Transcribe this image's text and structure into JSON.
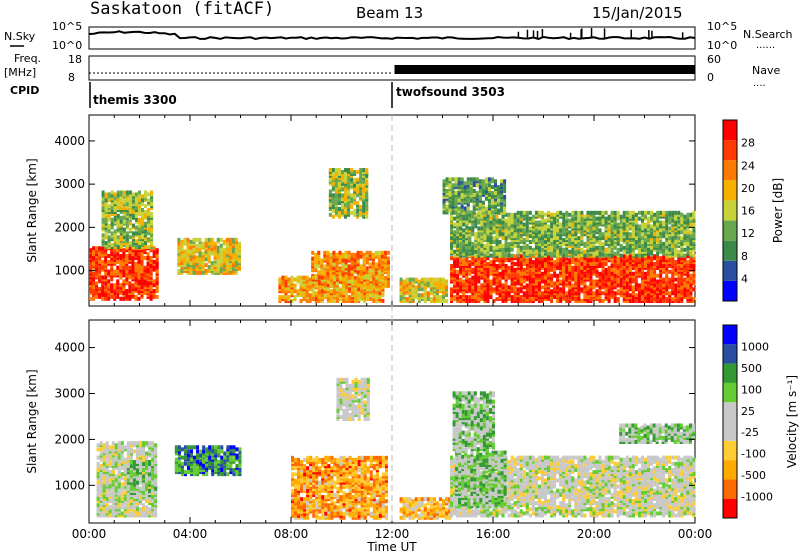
{
  "header": {
    "title": "Saskatoon (fitACF)",
    "beam": "Beam 13",
    "date": "15/Jan/2015"
  },
  "labels": {
    "nsky": "N.Sky",
    "nsearch": "N.Search",
    "freq": "Freq.",
    "mhz": "[MHz]",
    "nave": "Nave",
    "cpid": "CPID",
    "legend_dots": "......",
    "legend_dots_short": "...."
  },
  "ticks": {
    "noise_left": [
      "10^5",
      "10^0"
    ],
    "noise_right": [
      "10^5",
      "10^0"
    ],
    "freq_left": [
      "18",
      "8"
    ],
    "nave_right": [
      "60",
      "0"
    ]
  },
  "cpid_blocks": [
    {
      "name": "themis 3300",
      "start_hr": 0
    },
    {
      "name": "twofsound 3503",
      "start_hr": 12.0
    }
  ],
  "colors": {
    "power": [
      "#0000ff",
      "#2a4fa0",
      "#3b8a4a",
      "#6aa84f",
      "#c8d33a",
      "#f5b000",
      "#ff7a00",
      "#ff3a00",
      "#ff0000"
    ],
    "velocity": [
      "#ff0000",
      "#ff6a00",
      "#ffaa00",
      "#ffcc33",
      "#c8c8c8",
      "#c8c8c8",
      "#66cc33",
      "#339933",
      "#2a4fa0",
      "#0000ff"
    ]
  },
  "chart_data": [
    {
      "type": "heatmap",
      "id": "power",
      "ylabel": "Slant Range [km]",
      "yticks": [
        1000,
        2000,
        3000,
        4000
      ],
      "ylim": [
        180,
        4600
      ],
      "xlim": [
        0,
        24
      ],
      "colorbar_label": "Power [dB]",
      "colorbar_ticks": [
        "4",
        "8",
        "12",
        "16",
        "20",
        "24",
        "28"
      ],
      "regions": [
        {
          "t0": 0.0,
          "t1": 2.7,
          "r0": 300,
          "r1": 1500,
          "level": 0.85
        },
        {
          "t0": 0.5,
          "t1": 2.5,
          "r0": 1500,
          "r1": 2800,
          "level": 0.45
        },
        {
          "t0": 3.5,
          "t1": 6.0,
          "r0": 900,
          "r1": 1700,
          "level": 0.55
        },
        {
          "t0": 8.8,
          "t1": 11.8,
          "r0": 600,
          "r1": 1400,
          "level": 0.7
        },
        {
          "t0": 7.5,
          "t1": 11.6,
          "r0": 250,
          "r1": 800,
          "level": 0.65
        },
        {
          "t0": 9.5,
          "t1": 11.0,
          "r0": 2200,
          "r1": 3300,
          "level": 0.45
        },
        {
          "t0": 12.3,
          "t1": 14.2,
          "r0": 250,
          "r1": 750,
          "level": 0.55
        },
        {
          "t0": 14.3,
          "t1": 24.0,
          "r0": 250,
          "r1": 1300,
          "level": 0.85
        },
        {
          "t0": 14.3,
          "t1": 24.0,
          "r0": 1300,
          "r1": 2300,
          "level": 0.4
        },
        {
          "t0": 14.0,
          "t1": 16.5,
          "r0": 2300,
          "r1": 3100,
          "level": 0.35
        }
      ]
    },
    {
      "type": "heatmap",
      "id": "velocity",
      "ylabel": "Slant Range [km]",
      "yticks": [
        1000,
        2000,
        3000,
        4000
      ],
      "ylim": [
        180,
        4600
      ],
      "xlim": [
        0,
        24
      ],
      "xlabel": "Time UT",
      "xticks": [
        "00:00",
        "04:00",
        "08:00",
        "12:00",
        "16:00",
        "20:00",
        "00:00"
      ],
      "colorbar_label": "Velocity [m s⁻¹]",
      "colorbar_ticks": [
        "-1000",
        "-500",
        "-100",
        "-25",
        "25",
        "100",
        "500",
        "1000"
      ],
      "regions": [
        {
          "t0": 0.3,
          "t1": 2.7,
          "r0": 300,
          "r1": 1900,
          "level": 0.5
        },
        {
          "t0": 1.5,
          "t1": 2.7,
          "r0": 700,
          "r1": 1500,
          "level": 0.62
        },
        {
          "t0": 3.4,
          "t1": 6.0,
          "r0": 1200,
          "r1": 1800,
          "level": 0.78
        },
        {
          "t0": 8.0,
          "t1": 11.8,
          "r0": 250,
          "r1": 1600,
          "level": 0.25
        },
        {
          "t0": 9.8,
          "t1": 11.0,
          "r0": 2400,
          "r1": 3300,
          "level": 0.5
        },
        {
          "t0": 12.3,
          "t1": 14.3,
          "r0": 250,
          "r1": 700,
          "level": 0.28
        },
        {
          "t0": 14.3,
          "t1": 24.0,
          "r0": 300,
          "r1": 1600,
          "level": 0.5
        },
        {
          "t0": 14.5,
          "t1": 16.5,
          "r0": 500,
          "r1": 1700,
          "level": 0.62
        },
        {
          "t0": 14.4,
          "t1": 16.0,
          "r0": 1700,
          "r1": 3000,
          "level": 0.62
        },
        {
          "t0": 21.0,
          "t1": 24.0,
          "r0": 1900,
          "r1": 2300,
          "level": 0.62
        }
      ]
    }
  ]
}
